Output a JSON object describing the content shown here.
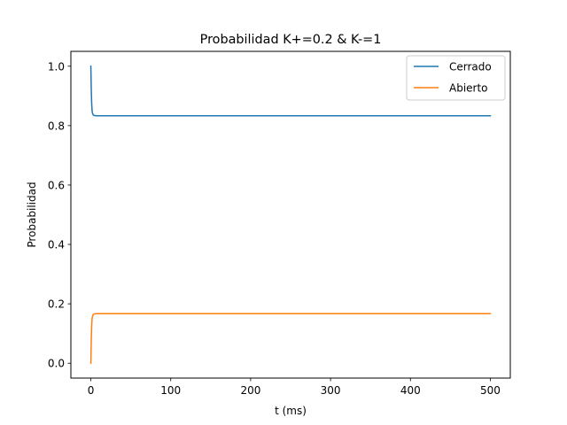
{
  "chart_data": {
    "type": "line",
    "title": "Probabilidad K+=0.2 & K-=1",
    "xlabel": "t (ms)",
    "ylabel": "Probabilidad",
    "xlim": [
      -25,
      525
    ],
    "ylim": [
      -0.05,
      1.05
    ],
    "xticks": [
      0,
      100,
      200,
      300,
      400,
      500
    ],
    "xtick_labels": [
      "0",
      "100",
      "200",
      "300",
      "400",
      "500"
    ],
    "yticks": [
      0.0,
      0.2,
      0.4,
      0.6,
      0.8,
      1.0
    ],
    "ytick_labels": [
      "0.0",
      "0.2",
      "0.4",
      "0.6",
      "0.8",
      "1.0"
    ],
    "grid": false,
    "legend_position": "top-right",
    "series": [
      {
        "name": "Cerrado",
        "color": "#1f77b4",
        "x": [
          0,
          0.5,
          1,
          1.5,
          2,
          3,
          4,
          5,
          7,
          10,
          20,
          50,
          100,
          200,
          300,
          400,
          500
        ],
        "y": [
          1.0,
          0.923,
          0.877,
          0.852,
          0.842,
          0.836,
          0.834,
          0.834,
          0.833,
          0.833,
          0.833,
          0.833,
          0.833,
          0.833,
          0.833,
          0.833,
          0.833
        ]
      },
      {
        "name": "Abierto",
        "color": "#ff7f0e",
        "x": [
          0,
          0.5,
          1,
          1.5,
          2,
          3,
          4,
          5,
          7,
          10,
          20,
          50,
          100,
          200,
          300,
          400,
          500
        ],
        "y": [
          0.0,
          0.077,
          0.123,
          0.148,
          0.158,
          0.164,
          0.166,
          0.166,
          0.167,
          0.167,
          0.167,
          0.167,
          0.167,
          0.167,
          0.167,
          0.167,
          0.167
        ]
      }
    ]
  }
}
